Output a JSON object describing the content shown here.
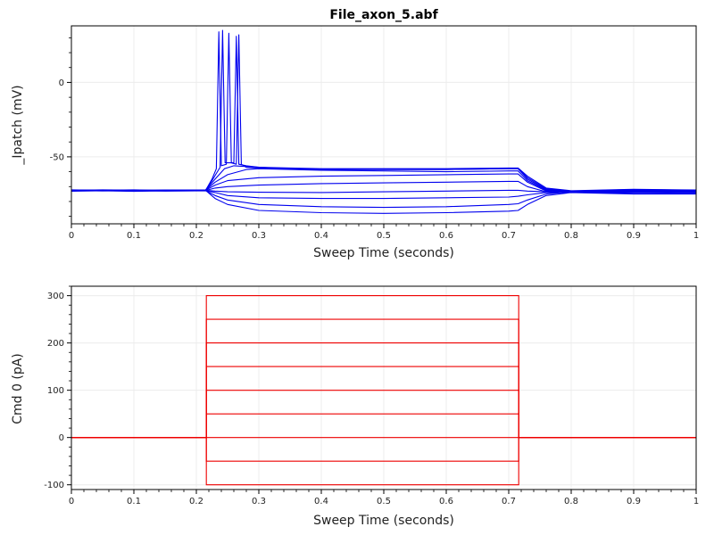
{
  "chart_data": [
    {
      "type": "line",
      "title": "File_axon_5.abf",
      "xlabel": "Sweep Time (seconds)",
      "ylabel": "_Ipatch (mV)",
      "xlim": [
        0,
        1
      ],
      "ylim": [
        -95,
        38
      ],
      "x_ticks": [
        "0",
        "0.1",
        "0.2",
        "0.3",
        "0.4",
        "0.5",
        "0.6",
        "0.7",
        "0.8",
        "0.9",
        "1"
      ],
      "y_ticks": [
        {
          "value": -50,
          "label": "-50"
        },
        {
          "value": 0,
          "label": "0"
        }
      ],
      "grid": true,
      "color": "#0000ee",
      "series": [
        {
          "x": [
            0,
            0.05,
            0.1,
            0.15,
            0.215,
            0.23,
            0.25,
            0.3,
            0.4,
            0.5,
            0.6,
            0.7,
            0.715,
            0.73,
            0.76,
            0.8,
            0.9,
            1
          ],
          "y": [
            -72.8,
            -72.5,
            -73,
            -72.6,
            -72.6,
            -78,
            -82,
            -86,
            -87.5,
            -88,
            -87.5,
            -86.5,
            -86,
            -82,
            -76,
            -74,
            -75,
            -75
          ]
        },
        {
          "x": [
            0,
            0.05,
            0.1,
            0.15,
            0.215,
            0.23,
            0.25,
            0.3,
            0.4,
            0.5,
            0.6,
            0.7,
            0.715,
            0.73,
            0.76,
            0.8,
            0.9,
            1
          ],
          "y": [
            -73.1,
            -72.8,
            -73.2,
            -72.9,
            -72.8,
            -76,
            -79,
            -82,
            -83.5,
            -84,
            -83.5,
            -82,
            -81.5,
            -79,
            -75,
            -73.5,
            -74.5,
            -74.8
          ]
        },
        {
          "x": [
            0,
            0.05,
            0.1,
            0.15,
            0.215,
            0.23,
            0.25,
            0.3,
            0.4,
            0.5,
            0.6,
            0.7,
            0.715,
            0.73,
            0.76,
            0.8,
            0.9,
            1
          ],
          "y": [
            -72.5,
            -72.9,
            -72.6,
            -73,
            -72.7,
            -74,
            -76,
            -77.5,
            -78,
            -78,
            -77.5,
            -77,
            -76.5,
            -75.5,
            -74,
            -74,
            -73.8,
            -74.2
          ]
        },
        {
          "x": [
            0,
            0.05,
            0.1,
            0.15,
            0.215,
            0.23,
            0.25,
            0.3,
            0.4,
            0.5,
            0.6,
            0.7,
            0.715,
            0.73,
            0.76,
            0.8,
            0.9,
            1
          ],
          "y": [
            -72.6,
            -72.6,
            -72.8,
            -72.6,
            -72.5,
            -73,
            -73.5,
            -73.8,
            -74,
            -73.5,
            -73,
            -72.5,
            -72.5,
            -73,
            -73.5,
            -73.5,
            -73.3,
            -73.8
          ]
        },
        {
          "x": [
            0,
            0.05,
            0.1,
            0.15,
            0.215,
            0.23,
            0.25,
            0.3,
            0.4,
            0.5,
            0.6,
            0.7,
            0.715,
            0.73,
            0.76,
            0.8,
            0.9,
            1
          ],
          "y": [
            -72.9,
            -72.5,
            -72.9,
            -72.4,
            -72.6,
            -71,
            -70,
            -69,
            -68,
            -67.5,
            -67,
            -66.5,
            -66.5,
            -70,
            -73.5,
            -74,
            -73,
            -73.5
          ]
        },
        {
          "x": [
            0,
            0.05,
            0.1,
            0.15,
            0.215,
            0.23,
            0.25,
            0.3,
            0.4,
            0.5,
            0.6,
            0.7,
            0.715,
            0.73,
            0.76,
            0.8,
            0.9,
            1
          ],
          "y": [
            -72.4,
            -72.7,
            -72.5,
            -72.8,
            -72.4,
            -69,
            -66,
            -64,
            -63,
            -62.5,
            -62,
            -61.5,
            -61.5,
            -67,
            -73,
            -73.8,
            -72.8,
            -73.2
          ]
        },
        {
          "x": [
            0,
            0.05,
            0.1,
            0.15,
            0.215,
            0.23,
            0.25,
            0.28,
            0.3,
            0.35,
            0.4,
            0.5,
            0.6,
            0.7,
            0.715,
            0.73,
            0.76,
            0.8,
            0.9,
            1
          ],
          "y": [
            -72.7,
            -72.4,
            -72.7,
            -72.5,
            -72.3,
            -67,
            -62,
            -58.5,
            -58,
            -58.5,
            -59,
            -59.5,
            -60,
            -59.5,
            -59.5,
            -66,
            -72.5,
            -73.5,
            -72.5,
            -73
          ]
        },
        {
          "x": [
            0,
            0.05,
            0.1,
            0.15,
            0.215,
            0.23,
            0.245,
            0.26,
            0.3,
            0.35,
            0.4,
            0.5,
            0.6,
            0.7,
            0.715,
            0.73,
            0.76,
            0.8,
            0.9,
            1
          ],
          "y": [
            -72.3,
            -72.6,
            -72.4,
            -72.7,
            -72.2,
            -65,
            -58,
            -56,
            -57,
            -58,
            -58.5,
            -58.5,
            -58.5,
            -58,
            -58,
            -65,
            -72,
            -73.2,
            -72.3,
            -72.8
          ]
        },
        {
          "x": [
            0,
            0.05,
            0.1,
            0.15,
            0.215,
            0.225,
            0.232,
            0.236,
            0.24,
            0.248,
            0.252,
            0.256,
            0.264,
            0.268,
            0.272,
            0.28,
            0.3,
            0.35,
            0.4,
            0.5,
            0.6,
            0.7,
            0.715,
            0.73,
            0.76,
            0.8,
            0.9,
            1
          ],
          "y": [
            -72.5,
            -72.2,
            -72.5,
            -72.3,
            -72.4,
            -65,
            -58,
            34,
            -56,
            -55,
            33,
            -54,
            -55,
            32,
            -55,
            -57,
            -57.5,
            -58,
            -58.5,
            -58.5,
            -58.5,
            -58,
            -58,
            -64,
            -71.5,
            -73,
            -72,
            -72.5
          ]
        },
        {
          "x": [
            0,
            0.05,
            0.1,
            0.15,
            0.215,
            0.225,
            0.238,
            0.242,
            0.246,
            0.26,
            0.264,
            0.268,
            0.28,
            0.3,
            0.35,
            0.4,
            0.5,
            0.6,
            0.7,
            0.715,
            0.73,
            0.76,
            0.8,
            0.9,
            1
          ],
          "y": [
            -72.2,
            -72.5,
            -72.2,
            -72.6,
            -72.3,
            -66,
            -57,
            35,
            -54,
            -54,
            31,
            -55,
            -56,
            -57,
            -57.5,
            -58,
            -58,
            -58,
            -57.5,
            -57.5,
            -63,
            -71,
            -72.8,
            -71.8,
            -72.3
          ]
        }
      ]
    },
    {
      "type": "line",
      "title": "",
      "xlabel": "Sweep Time (seconds)",
      "ylabel": "Cmd 0 (pA)",
      "xlim": [
        0,
        1
      ],
      "ylim": [
        -110,
        320
      ],
      "x_ticks": [
        "0",
        "0.1",
        "0.2",
        "0.3",
        "0.4",
        "0.5",
        "0.6",
        "0.7",
        "0.8",
        "0.9",
        "1"
      ],
      "y_ticks": [
        {
          "value": -100,
          "label": "-100"
        },
        {
          "value": 0,
          "label": "0"
        },
        {
          "value": 100,
          "label": "100"
        },
        {
          "value": 200,
          "label": "200"
        },
        {
          "value": 300,
          "label": "300"
        }
      ],
      "grid": true,
      "color": "#ee0000",
      "step_start": 0.216,
      "step_end": 0.716,
      "baseline": 0,
      "step_levels": [
        -100,
        -50,
        0,
        50,
        100,
        150,
        200,
        250,
        300
      ]
    }
  ]
}
